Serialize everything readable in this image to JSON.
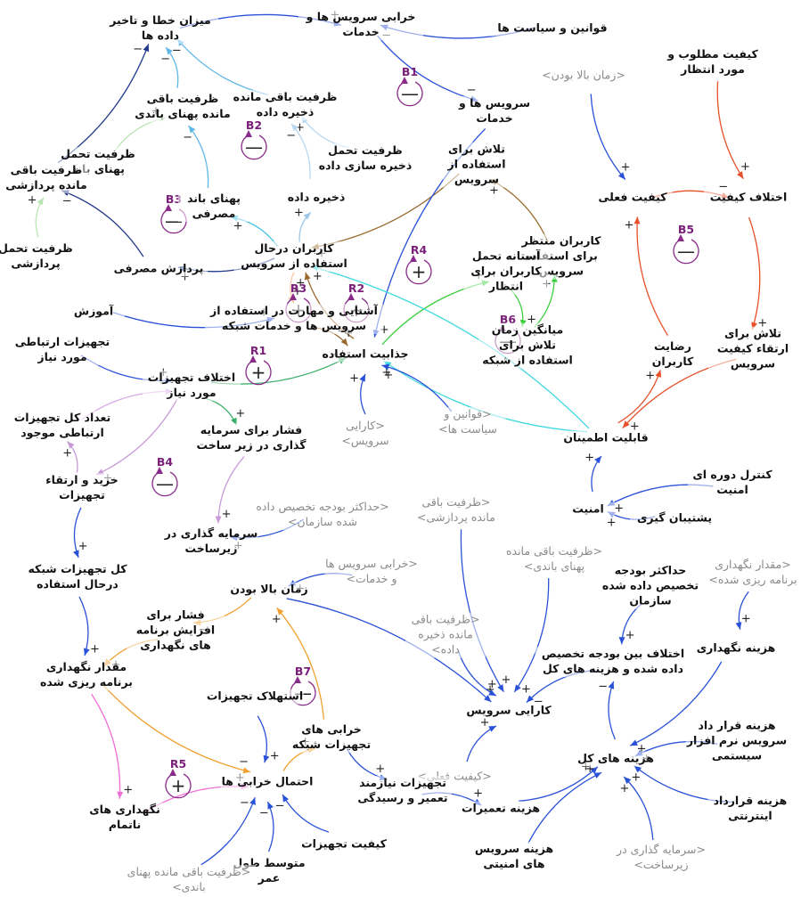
{
  "nodes": [
    {
      "label": "میزان خطا و تاخیر داده ها"
    },
    {
      "label": "خرابی سرویس ها و خدمات"
    },
    {
      "label": "قوانین و سیاست ها"
    },
    {
      "label": "کیفیت مطلوب و مورد انتظار"
    },
    {
      "label": "<زمان بالا بودن>"
    },
    {
      "label": "سرویس ها و خدمات"
    },
    {
      "label": "ظرفیت باقی مانده ذخیره داده"
    },
    {
      "label": "ظرفیت باقی مانده پهنای باندی"
    },
    {
      "label": "ظرفیت تحمل ذخیره سازی داده"
    },
    {
      "label": "تلاش برای استفاده از سرویس"
    },
    {
      "label": "ظرفیت تحمل پهنای باند"
    },
    {
      "label": "ظرفیت باقی مانده پردازشی"
    },
    {
      "label": "پهنای باند مصرفی"
    },
    {
      "label": "ذخیره داده"
    },
    {
      "label": "کیفیت فعلی"
    },
    {
      "label": "اختلاف کیفیت"
    },
    {
      "label": "کاربران درحال استفاده از سرویس"
    },
    {
      "label": "کاربران منتظر برای استفاده سرویس"
    },
    {
      "label": "آستانه تحمل کاربران برای انتظار"
    },
    {
      "label": "ظرفیت تحمل پردازشی"
    },
    {
      "label": "پردازش مصرفی"
    },
    {
      "label": "آموزش"
    },
    {
      "label": "آشنایی و مهارت در استفاده از سرویس ها و خدمات شبکه"
    },
    {
      "label": "تجهیزات ارتباطی مورد نیاز"
    },
    {
      "label": "جذابیت استفاده"
    },
    {
      "label": "میانگین زمان تلاش برای استفاده از شبکه"
    },
    {
      "label": "رضایت کاربران"
    },
    {
      "label": "تلاش برای ارتقاء کیفیت سرویس"
    },
    {
      "label": "اختلاف تجهیزات مورد نیاز"
    },
    {
      "label": "تعداد کل تجهیزات ارتباطی موجود"
    },
    {
      "label": "فشار برای سرمایه گذاری در زیر ساخت"
    },
    {
      "label": "<کارایی سرویس>"
    },
    {
      "label": "<قوانین و سیاست ها>"
    },
    {
      "label": "قابلیت اطمینان"
    },
    {
      "label": "کنترل دوره ای امنیت"
    },
    {
      "label": "خرید و ارتقاء تجهیزات"
    },
    {
      "label": "امنیت"
    },
    {
      "label": "<حداکثر بودجه تخصیص داده شده سازمان>"
    },
    {
      "label": "<ظرفیت باقی مانده پردازشی>"
    },
    {
      "label": "پشتیبان گیری"
    },
    {
      "label": "سرمایه گذاری در زیرساخت"
    },
    {
      "label": "<ظرفیت باقی مانده پهنای باندی>"
    },
    {
      "label": "<مقدار نگهداری برنامه ریزی شده>"
    },
    {
      "label": "کل تجهیزات شبکه درحال استفاده"
    },
    {
      "label": "<خرابی سرویس ها و خدمات>"
    },
    {
      "label": "حداکثر بودجه تخصیص داده شده سازمان"
    },
    {
      "label": "زمان بالا بودن"
    },
    {
      "label": "فشار برای افزایش برنامه های نگهداری"
    },
    {
      "label": "<ظرفیت باقی مانده ذخیره داده>"
    },
    {
      "label": "هزینه نگهداری"
    },
    {
      "label": "اختلاف بین بودجه تخصیص داده شده و هزینه های کل"
    },
    {
      "label": "مقدار نگهداری برنامه ریزی شده"
    },
    {
      "label": "استهلاک تجهیزات"
    },
    {
      "label": "کارایی سرویس"
    },
    {
      "label": "خرابی های تجهیزات شبکه"
    },
    {
      "label": "هزینه قرار داد سرویس نرم افزار سیستمی"
    },
    {
      "label": "هزینه های کل"
    },
    {
      "label": "<کیفیت فعلی>"
    },
    {
      "label": "احتمال خرابی ها"
    },
    {
      "label": "تجهیزات نیازمند تعمیر و رسیدگی"
    },
    {
      "label": "هزینه تعمیرات"
    },
    {
      "label": "هزینه قرارداد اینترنتی"
    },
    {
      "label": "نگهداری های ناتمام"
    },
    {
      "label": "کیفیت تجهیزات"
    },
    {
      "label": "هزینه سرویس های امنیتی"
    },
    {
      "label": "<سرمایه گذاری در زیرساخت>"
    },
    {
      "label": "متوسط طول عمر"
    },
    {
      "label": "<ظرفیت باقی مانده پهنای باندی>"
    }
  ],
  "edges": [
    {
      "from": 2,
      "to": 1,
      "sign": "−",
      "color": "#2a52d8"
    },
    {
      "from": 1,
      "to": 5,
      "sign": "−",
      "color": "#2a52d8"
    },
    {
      "from": 0,
      "to": 1,
      "sign": "+",
      "color": "#2a52d8"
    },
    {
      "from": 7,
      "to": 0,
      "sign": "−",
      "color": "#5fb7e8"
    },
    {
      "from": 6,
      "to": 0,
      "sign": "−",
      "color": "#5fb7e8"
    },
    {
      "from": 11,
      "to": 0,
      "sign": "−",
      "color": "#1f3a8a"
    },
    {
      "from": 10,
      "to": 7,
      "sign": "+",
      "color": "#b8e6b0"
    },
    {
      "from": 12,
      "to": 7,
      "sign": "−",
      "color": "#5fb7e8"
    },
    {
      "from": 8,
      "to": 6,
      "sign": "+",
      "color": "#b9d8ef"
    },
    {
      "from": 13,
      "to": 6,
      "sign": "−",
      "color": "#b9d8ef"
    },
    {
      "from": 19,
      "to": 11,
      "sign": "+",
      "color": "#b8e6b0"
    },
    {
      "from": 20,
      "to": 11,
      "sign": "−",
      "color": "#1f3a8a"
    },
    {
      "from": 16,
      "to": 20,
      "sign": "+",
      "color": "#1f3a8a"
    },
    {
      "from": 16,
      "to": 12,
      "sign": "+",
      "color": "#3fc0e0"
    },
    {
      "from": 16,
      "to": 13,
      "sign": "+",
      "color": "#9cc7e8"
    },
    {
      "from": 16,
      "to": 22,
      "sign": "+",
      "color": "#f7c8a8"
    },
    {
      "from": 9,
      "to": 16,
      "sign": "+",
      "color": "#9b6a2e"
    },
    {
      "from": 5,
      "to": 24,
      "sign": "+",
      "color": "#2a52d8"
    },
    {
      "from": 24,
      "to": 16,
      "sign": "+",
      "color": "#9b6a2e"
    },
    {
      "from": 17,
      "to": 9,
      "sign": "+",
      "color": "#9b6a2e"
    },
    {
      "from": 24,
      "to": 18,
      "sign": "+",
      "color": "#3ccf3c"
    },
    {
      "from": 25,
      "to": 17,
      "sign": "+",
      "color": "#3ccf3c"
    },
    {
      "from": 18,
      "to": 25,
      "sign": "+",
      "color": "#3ccf3c"
    },
    {
      "from": 3,
      "to": 15,
      "sign": "+",
      "color": "#e8502a"
    },
    {
      "from": 14,
      "to": 15,
      "sign": "−",
      "color": "#e8502a"
    },
    {
      "from": 4,
      "to": 14,
      "sign": "+",
      "color": "#2a52d8"
    },
    {
      "from": 15,
      "to": 27,
      "sign": "+",
      "color": "#e8502a"
    },
    {
      "from": 27,
      "to": 33,
      "sign": "+",
      "color": "#e8502a"
    },
    {
      "from": 26,
      "to": 14,
      "sign": "+",
      "color": "#e8502a"
    },
    {
      "from": 33,
      "to": 26,
      "sign": "+",
      "color": "#e8502a"
    },
    {
      "from": 33,
      "to": 24,
      "sign": "+",
      "color": "#3fd8e0"
    },
    {
      "from": 33,
      "to": 16,
      "sign": "+",
      "color": "#3fd8e0"
    },
    {
      "from": 36,
      "to": 33,
      "sign": "+",
      "color": "#2a52d8"
    },
    {
      "from": 34,
      "to": 36,
      "sign": "+",
      "color": "#2a52d8"
    },
    {
      "from": 39,
      "to": 36,
      "sign": "+",
      "color": "#2a52d8"
    },
    {
      "from": 32,
      "to": 24,
      "sign": "+",
      "color": "#2a52d8"
    },
    {
      "from": 31,
      "to": 24,
      "sign": "+",
      "color": "#2a52d8"
    },
    {
      "from": 21,
      "to": 22,
      "sign": "+",
      "color": "#2a52d8"
    },
    {
      "from": 22,
      "to": 24,
      "sign": "+",
      "color": "#9b6a2e"
    },
    {
      "from": 23,
      "to": 28,
      "sign": "+",
      "color": "#2a52d8"
    },
    {
      "from": 29,
      "to": 28,
      "sign": "−",
      "color": "#d8a8e8"
    },
    {
      "from": 28,
      "to": 24,
      "sign": "−",
      "color": "#3cae6a"
    },
    {
      "from": 28,
      "to": 30,
      "sign": "+",
      "color": "#3cae6a"
    },
    {
      "from": 30,
      "to": 40,
      "sign": "+",
      "color": "#c89ad8"
    },
    {
      "from": 37,
      "to": 40,
      "sign": "+",
      "color": "#2a52d8"
    },
    {
      "from": 35,
      "to": 29,
      "sign": "+",
      "color": "#c89ad8"
    },
    {
      "from": 28,
      "to": 35,
      "sign": "+",
      "color": "#c89ad8"
    },
    {
      "from": 35,
      "to": 43,
      "sign": "+",
      "color": "#2a52d8"
    },
    {
      "from": 43,
      "to": 51,
      "sign": "+",
      "color": "#2a52d8"
    },
    {
      "from": 44,
      "to": 46,
      "sign": "+",
      "color": "#2a52d8"
    },
    {
      "from": 46,
      "to": 47,
      "sign": "−",
      "color": "#f0a030"
    },
    {
      "from": 47,
      "to": 51,
      "sign": "+",
      "color": "#f0a030"
    },
    {
      "from": 51,
      "to": 62,
      "sign": "+",
      "color": "#f070d8"
    },
    {
      "from": 51,
      "to": 58,
      "sign": "−",
      "color": "#f0a030"
    },
    {
      "from": 52,
      "to": 58,
      "sign": "+",
      "color": "#2a52d8"
    },
    {
      "from": 54,
      "to": 46,
      "sign": "+",
      "color": "#f0a030"
    },
    {
      "from": 58,
      "to": 54,
      "sign": "+",
      "color": "#f0a030"
    },
    {
      "from": 54,
      "to": 59,
      "sign": "+",
      "color": "#2a52d8"
    },
    {
      "from": 63,
      "to": 58,
      "sign": "−",
      "color": "#2a52d8"
    },
    {
      "from": 66,
      "to": 58,
      "sign": "−",
      "color": "#2a52d8"
    },
    {
      "from": 62,
      "to": 58,
      "sign": "+",
      "color": "#f070d8"
    },
    {
      "from": 67,
      "to": 58,
      "sign": "−",
      "color": "#2a52d8"
    },
    {
      "from": 46,
      "to": 53,
      "sign": "+",
      "color": "#2a52d8"
    },
    {
      "from": 38,
      "to": 53,
      "sign": "+",
      "color": "#2a52d8"
    },
    {
      "from": 41,
      "to": 53,
      "sign": "+",
      "color": "#2a52d8"
    },
    {
      "from": 48,
      "to": 53,
      "sign": "+",
      "color": "#2a52d8"
    },
    {
      "from": 57,
      "to": 53,
      "sign": "+",
      "color": "#2a52d8"
    },
    {
      "from": 50,
      "to": 53,
      "sign": "−",
      "color": "#2a52d8"
    },
    {
      "from": 56,
      "to": 50,
      "sign": "−",
      "color": "#2a52d8"
    },
    {
      "from": 45,
      "to": 50,
      "sign": "+",
      "color": "#2a52d8"
    },
    {
      "from": 49,
      "to": 56,
      "sign": "+",
      "color": "#2a52d8"
    },
    {
      "from": 55,
      "to": 56,
      "sign": "+",
      "color": "#2a52d8"
    },
    {
      "from": 61,
      "to": 56,
      "sign": "+",
      "color": "#2a52d8"
    },
    {
      "from": 60,
      "to": 56,
      "sign": "+",
      "color": "#2a52d8"
    },
    {
      "from": 64,
      "to": 56,
      "sign": "+",
      "color": "#2a52d8"
    },
    {
      "from": 65,
      "to": 56,
      "sign": "+",
      "color": "#2a52d8"
    },
    {
      "from": 59,
      "to": 60,
      "sign": "+",
      "color": "#2a52d8"
    },
    {
      "from": 42,
      "to": 49,
      "sign": "+",
      "color": "#2a52d8"
    }
  ],
  "loops": [
    {
      "name": "B1",
      "sign": "—"
    },
    {
      "name": "B2",
      "sign": "—"
    },
    {
      "name": "B3",
      "sign": "—"
    },
    {
      "name": "R4",
      "sign": "+"
    },
    {
      "name": "R3",
      "sign": "+"
    },
    {
      "name": "R2",
      "sign": "+"
    },
    {
      "name": "R1",
      "sign": "+"
    },
    {
      "name": "B5",
      "sign": "—"
    },
    {
      "name": "B6",
      "sign": "—"
    },
    {
      "name": "B4",
      "sign": "—"
    },
    {
      "name": "B7",
      "sign": "—"
    },
    {
      "name": "R5",
      "sign": "+"
    }
  ]
}
